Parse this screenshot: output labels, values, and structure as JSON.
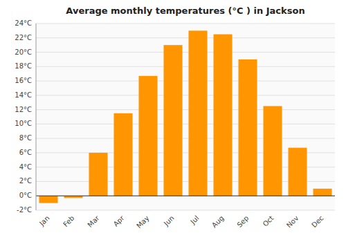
{
  "chart_data": {
    "type": "bar",
    "title": "Average monthly temperatures (°C ) in Jackson",
    "categories": [
      "Jan",
      "Feb",
      "Mar",
      "Apr",
      "May",
      "Jun",
      "Jul",
      "Aug",
      "Sep",
      "Oct",
      "Nov",
      "Dec"
    ],
    "values": [
      -1.0,
      -0.3,
      6.0,
      11.5,
      16.7,
      21.0,
      23.0,
      22.5,
      19.0,
      12.5,
      6.7,
      1.0
    ],
    "color": "#FF9500",
    "ylim": [
      -2,
      24
    ],
    "yticks": [
      {
        "value": -2,
        "label": "-2°C"
      },
      {
        "value": 0,
        "label": "0°C"
      },
      {
        "value": 2,
        "label": "2°C"
      },
      {
        "value": 4,
        "label": "4°C"
      },
      {
        "value": 6,
        "label": "6°C"
      },
      {
        "value": 8,
        "label": "8°C"
      },
      {
        "value": 10,
        "label": "10°C"
      },
      {
        "value": 12,
        "label": "12°C"
      },
      {
        "value": 14,
        "label": "14°C"
      },
      {
        "value": 16,
        "label": "16°C"
      },
      {
        "value": 18,
        "label": "18°C"
      },
      {
        "value": 20,
        "label": "20°C"
      },
      {
        "value": 22,
        "label": "22°C"
      },
      {
        "value": 24,
        "label": "24°C"
      }
    ],
    "grid": true
  }
}
